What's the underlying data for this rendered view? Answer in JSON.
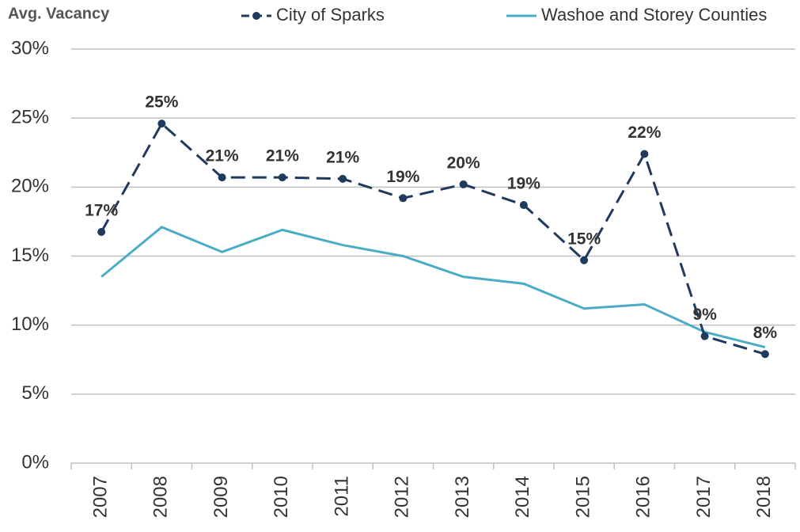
{
  "chart_data": {
    "type": "line",
    "ylabel": "Avg. Vacancy",
    "categories": [
      "2007",
      "2008",
      "2009",
      "2010",
      "2011",
      "2012",
      "2013",
      "2014",
      "2015",
      "2016",
      "2017",
      "2018"
    ],
    "series": [
      {
        "name": "City of Sparks",
        "color": "#1f3a5f",
        "dashed": true,
        "markers": true,
        "values": [
          16.75,
          24.6,
          20.7,
          20.7,
          20.6,
          19.2,
          20.2,
          18.7,
          14.7,
          22.4,
          9.2,
          7.9
        ],
        "value_labels": [
          "17%",
          "25%",
          "21%",
          "21%",
          "21%",
          "19%",
          "20%",
          "19%",
          "15%",
          "22%",
          "9%",
          "8%"
        ]
      },
      {
        "name": "Washoe and Storey Counties",
        "color": "#4bacc6",
        "dashed": false,
        "markers": false,
        "values": [
          13.5,
          17.1,
          15.3,
          16.9,
          15.8,
          15.0,
          13.5,
          13.0,
          11.2,
          11.5,
          9.5,
          8.4
        ]
      }
    ],
    "ylim": [
      0,
      30
    ],
    "yticks": [
      {
        "value": 0,
        "label": "0%"
      },
      {
        "value": 5,
        "label": "5%"
      },
      {
        "value": 10,
        "label": "10%"
      },
      {
        "value": 15,
        "label": "15%"
      },
      {
        "value": 20,
        "label": "20%"
      },
      {
        "value": 25,
        "label": "25%"
      },
      {
        "value": 30,
        "label": "30%"
      }
    ],
    "grid": true
  }
}
